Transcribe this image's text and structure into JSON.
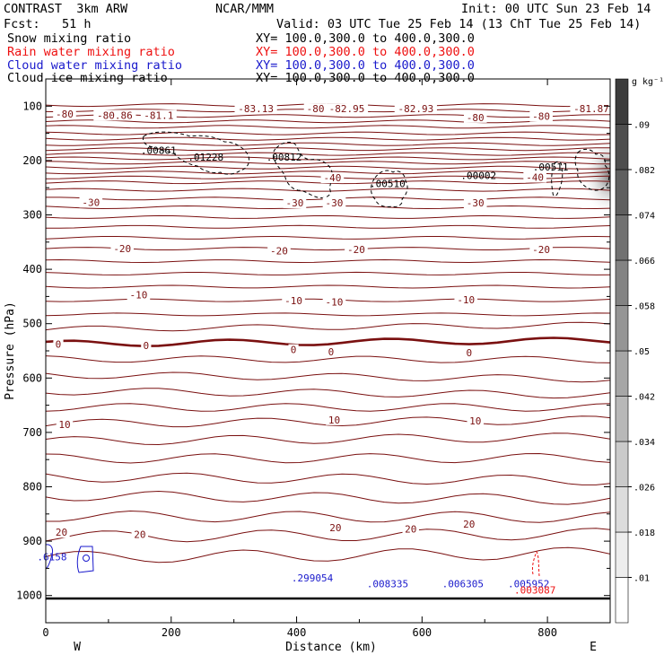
{
  "header": {
    "model": "CONTRAST  3km ARW",
    "org": "NCAR/MMM",
    "init": "Init: 00 UTC Sun 23 Feb 14",
    "fcst": "Fcst:   51 h",
    "valid": "Valid: 03 UTC Tue 25 Feb 14 (13 ChT Tue 25 Feb 14)",
    "fields": [
      {
        "name": "Snow mixing ratio",
        "xy": "XY= 100.0,300.0 to 400.0,300.0",
        "color": "#000000"
      },
      {
        "name": "Rain water mixing ratio",
        "xy": "XY= 100.0,300.0 to 400.0,300.0",
        "color": "#ee1111"
      },
      {
        "name": "Cloud water mixing ratio",
        "xy": "XY= 100.0,300.0 to 400.0,300.0",
        "color": "#1a1acc"
      },
      {
        "name": "Cloud ice mixing ratio",
        "xy": "XY= 100.0,300.0 to 400.0,300.0",
        "color": "#000000"
      }
    ]
  },
  "colorbar": {
    "unit": "g kg⁻¹",
    "ticks": [
      ".01",
      ".018",
      ".026",
      ".034",
      ".042",
      ".05",
      ".058",
      ".066",
      ".074",
      ".082",
      ".09"
    ]
  },
  "chart_data": {
    "type": "contour cross-section",
    "xlabel": "Distance (km)",
    "ylabel": "Pressure (hPa)",
    "xlim": [
      0,
      900
    ],
    "ylim": [
      1050,
      50
    ],
    "x_ticks": [
      0,
      200,
      400,
      600,
      800
    ],
    "y_ticks": [
      100,
      200,
      300,
      400,
      500,
      600,
      700,
      800,
      900,
      1000
    ],
    "west_label": "W",
    "east_label": "E",
    "contour_labels": [
      {
        "text": "-80",
        "x": 30,
        "p": 118
      },
      {
        "text": "-80.86",
        "x": 110,
        "p": 120
      },
      {
        "text": "-81.1",
        "x": 180,
        "p": 120
      },
      {
        "text": "-83.13",
        "x": 335,
        "p": 108
      },
      {
        "text": "-80",
        "x": 430,
        "p": 108
      },
      {
        "text": "-82.95",
        "x": 480,
        "p": 108
      },
      {
        "text": "-82.93",
        "x": 590,
        "p": 108
      },
      {
        "text": "-80",
        "x": 685,
        "p": 124
      },
      {
        "text": "-80",
        "x": 790,
        "p": 122
      },
      {
        "text": "-81.87",
        "x": 870,
        "p": 108
      },
      {
        "text": "-40",
        "x": 457,
        "p": 235
      },
      {
        "text": "-40",
        "x": 780,
        "p": 234
      },
      {
        "text": "-30",
        "x": 72,
        "p": 280
      },
      {
        "text": "-30",
        "x": 397,
        "p": 281
      },
      {
        "text": "-30",
        "x": 460,
        "p": 281
      },
      {
        "text": "-30",
        "x": 685,
        "p": 281
      },
      {
        "text": "-20",
        "x": 122,
        "p": 365
      },
      {
        "text": "-20",
        "x": 372,
        "p": 369
      },
      {
        "text": "-20",
        "x": 495,
        "p": 367
      },
      {
        "text": "-20",
        "x": 790,
        "p": 367
      },
      {
        "text": "-10",
        "x": 148,
        "p": 450
      },
      {
        "text": "-10",
        "x": 395,
        "p": 461
      },
      {
        "text": "-10",
        "x": 460,
        "p": 463
      },
      {
        "text": "-10",
        "x": 670,
        "p": 459
      },
      {
        "text": "0",
        "x": 20,
        "p": 541
      },
      {
        "text": "0",
        "x": 160,
        "p": 543
      },
      {
        "text": "0",
        "x": 395,
        "p": 551
      },
      {
        "text": "0",
        "x": 455,
        "p": 555
      },
      {
        "text": "0",
        "x": 675,
        "p": 557
      },
      {
        "text": "10",
        "x": 30,
        "p": 689
      },
      {
        "text": "10",
        "x": 460,
        "p": 680
      },
      {
        "text": "10",
        "x": 685,
        "p": 682
      },
      {
        "text": "20",
        "x": 25,
        "p": 887
      },
      {
        "text": "20",
        "x": 150,
        "p": 891
      },
      {
        "text": "20",
        "x": 462,
        "p": 878
      },
      {
        "text": "20",
        "x": 582,
        "p": 881
      },
      {
        "text": "20",
        "x": 675,
        "p": 872
      }
    ],
    "maxima_labels": [
      {
        "text": ".00861",
        "x": 180,
        "p": 188,
        "color": "#000000"
      },
      {
        "text": ".01228",
        "x": 255,
        "p": 200,
        "color": "#000000"
      },
      {
        "text": ".00812",
        "x": 380,
        "p": 200,
        "color": "#000000"
      },
      {
        "text": ".00510",
        "x": 545,
        "p": 249,
        "color": "#000000"
      },
      {
        "text": ".00002",
        "x": 690,
        "p": 234,
        "color": "#000000"
      },
      {
        "text": ".00511",
        "x": 805,
        "p": 218,
        "color": "#000000"
      },
      {
        "text": ".6158",
        "x": 10,
        "p": 935,
        "color": "#1a1acc"
      },
      {
        "text": ".299054",
        "x": 425,
        "p": 974,
        "color": "#1a1acc"
      },
      {
        "text": ".008335",
        "x": 545,
        "p": 985,
        "color": "#1a1acc"
      },
      {
        "text": ".006305",
        "x": 665,
        "p": 985,
        "color": "#1a1acc"
      },
      {
        "text": ".005952",
        "x": 770,
        "p": 985,
        "color": "#1a1acc"
      },
      {
        "text": ".003087",
        "x": 780,
        "p": 996,
        "color": "#ee1111"
      }
    ]
  }
}
